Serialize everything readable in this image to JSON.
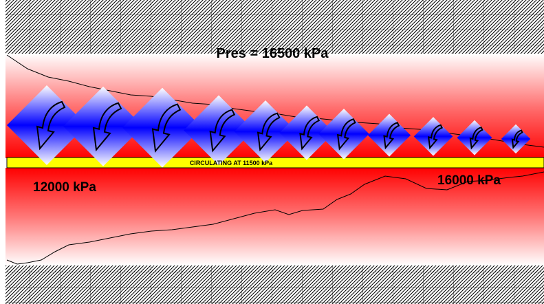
{
  "labels": {
    "reservoir_pressure": "Pres = 16500 kPa",
    "circulating": "CIRCULATING AT 11500 kPa",
    "left_pressure": "12000 kPa",
    "right_pressure": "16000 kPa"
  },
  "colors": {
    "formation_red": "#ff0000",
    "circulating_band": "#ffff00",
    "arrow_blue": "#0000ff",
    "hatch": "#000000"
  },
  "influx_arrows": {
    "count": 11,
    "direction": "down"
  },
  "icons": {
    "influx": "inflow-arrow-icon"
  }
}
